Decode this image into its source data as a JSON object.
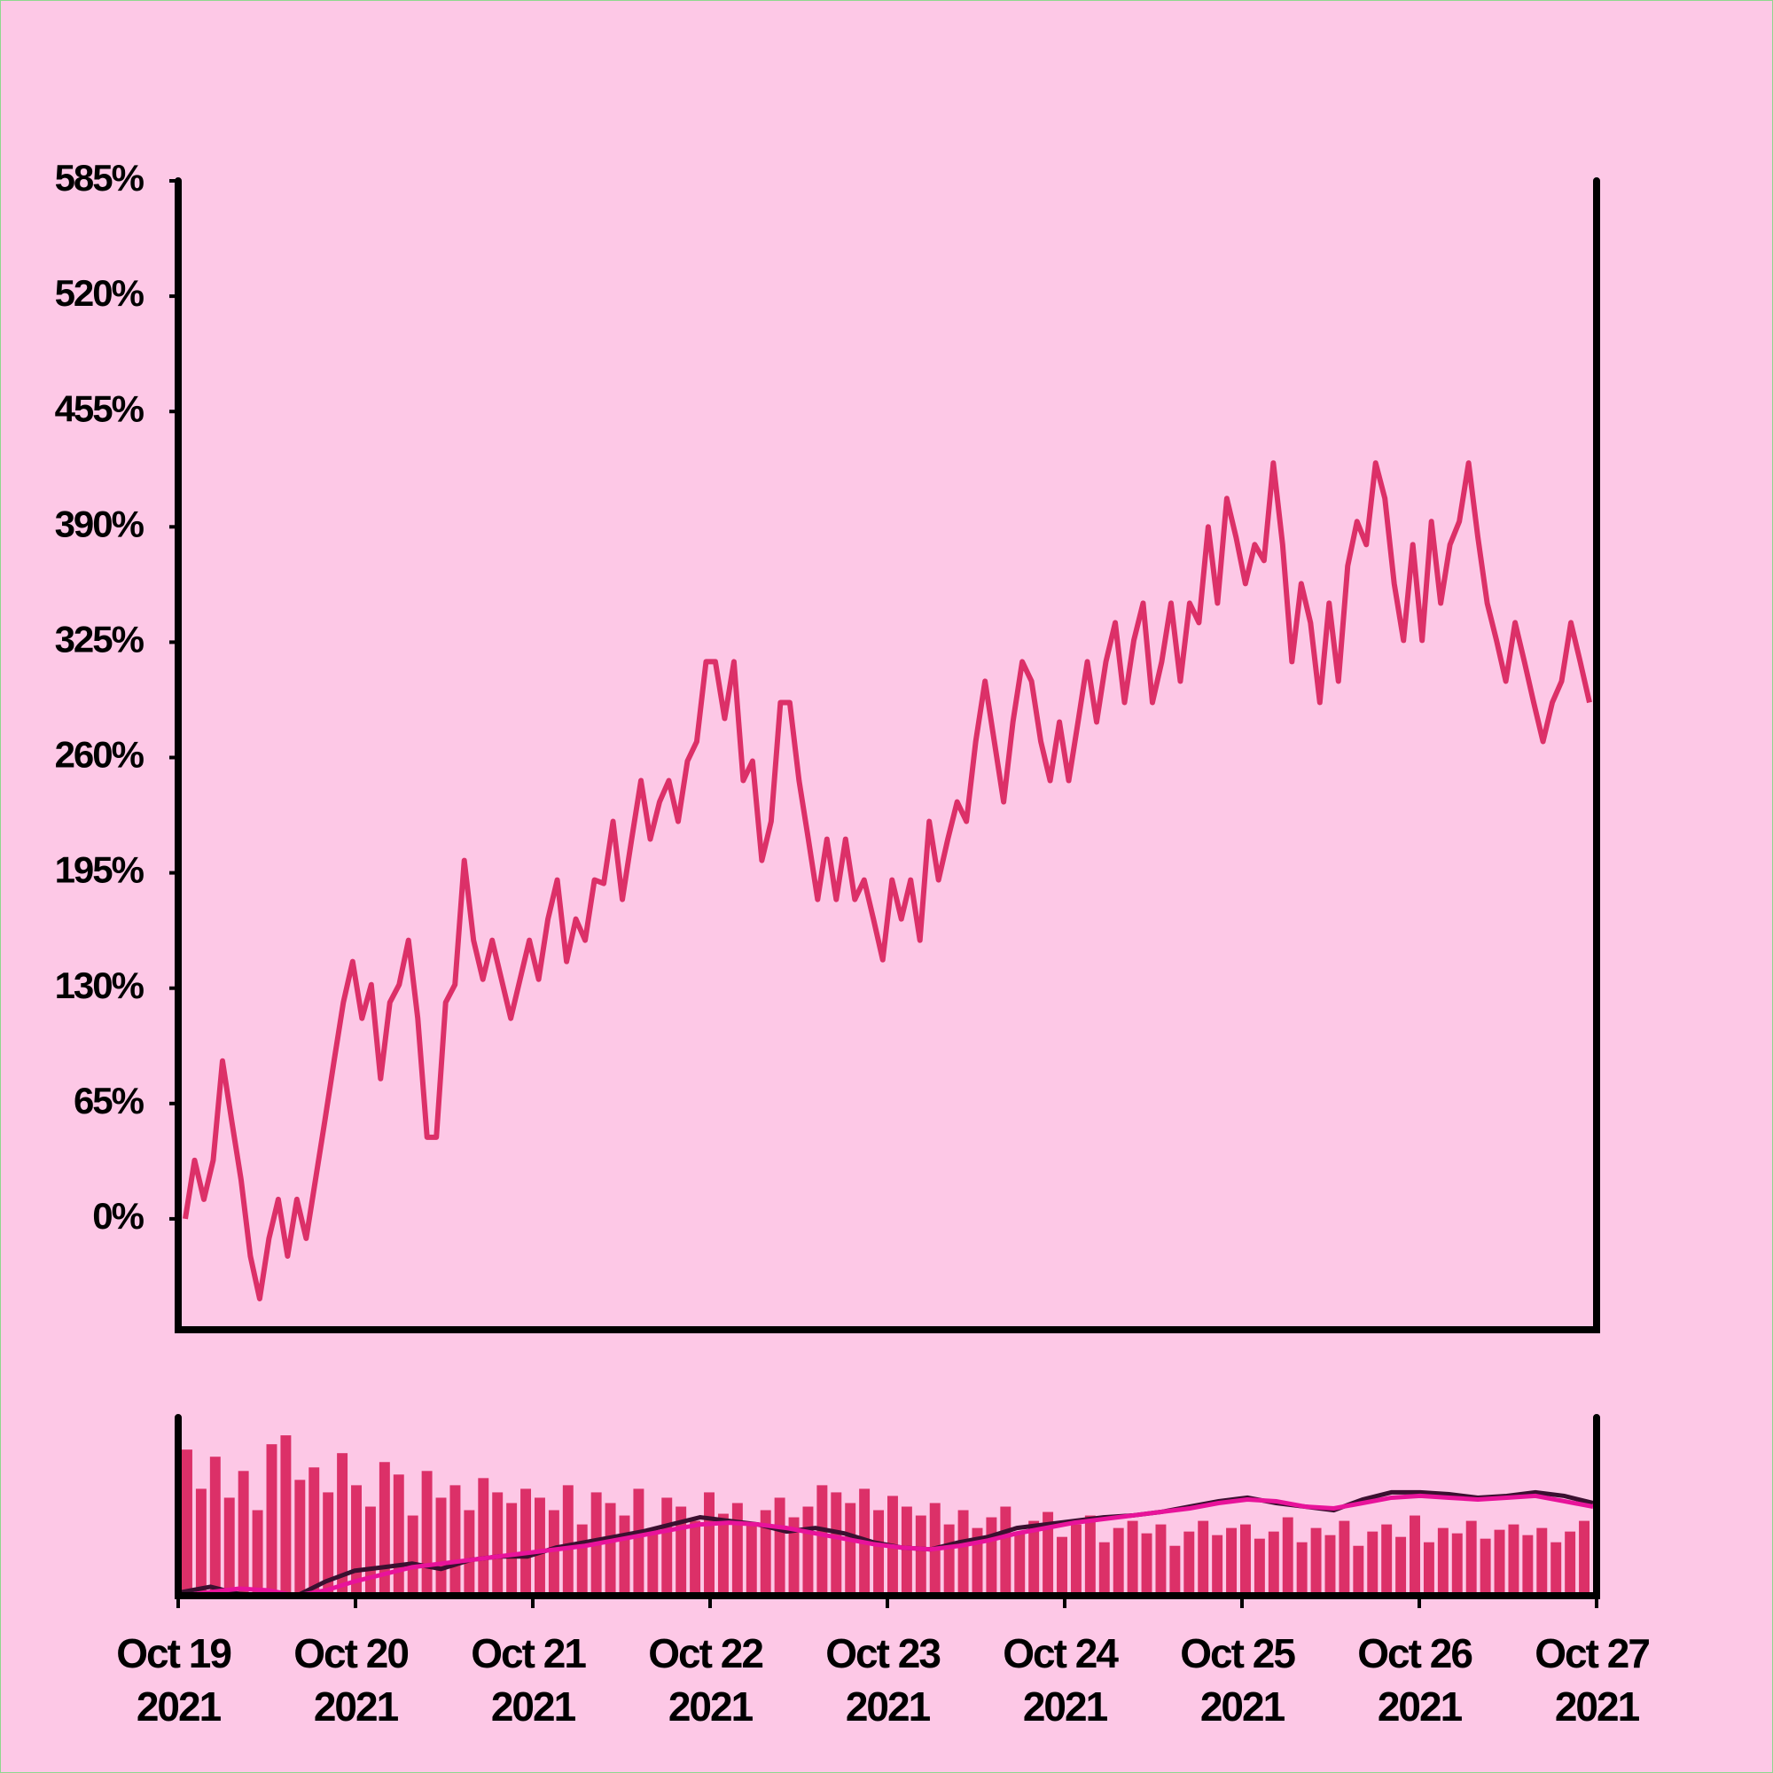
{
  "chart_data": [
    {
      "type": "line",
      "color": "#dc3068",
      "values": [
        0,
        33,
        11,
        33,
        89,
        55,
        22,
        -21,
        -45,
        -11,
        11,
        -21,
        11,
        -11,
        22,
        55,
        89,
        122,
        145,
        113,
        132,
        79,
        122,
        132,
        157,
        113,
        46,
        46,
        122,
        132,
        202,
        157,
        135,
        157,
        135,
        113,
        135,
        157,
        135,
        169,
        191,
        145,
        169,
        157,
        191,
        189,
        224,
        180,
        214,
        247,
        214,
        235,
        247,
        224,
        258,
        269,
        314,
        314,
        282,
        314,
        247,
        258,
        202,
        224,
        291,
        291,
        247,
        214,
        180,
        214,
        180,
        214,
        180,
        191,
        169,
        146,
        191,
        169,
        191,
        157,
        224,
        191,
        214,
        235,
        224,
        269,
        303,
        269,
        235,
        280,
        314,
        303,
        269,
        247,
        280,
        247,
        280,
        314,
        280,
        314,
        336,
        291,
        326,
        347,
        291,
        314,
        347,
        303,
        347,
        336,
        390,
        347,
        406,
        384,
        358,
        380,
        371,
        426,
        380,
        314,
        358,
        336,
        291,
        347,
        303,
        368,
        393,
        380,
        426,
        406,
        358,
        326,
        380,
        326,
        393,
        347,
        380,
        393,
        426,
        384,
        347,
        326,
        303,
        336,
        314,
        291,
        269,
        291,
        303,
        336,
        314,
        291
      ],
      "ylim": [
        -62.5,
        585
      ],
      "yticks": [
        {
          "value": 0,
          "label": "0%"
        },
        {
          "value": 65,
          "label": "65%"
        },
        {
          "value": 130,
          "label": "130%"
        },
        {
          "value": 195,
          "label": "195%"
        },
        {
          "value": 260,
          "label": "260%"
        },
        {
          "value": 325,
          "label": "325%"
        },
        {
          "value": 390,
          "label": "390%"
        },
        {
          "value": 455,
          "label": "455%"
        },
        {
          "value": 520,
          "label": "520%"
        },
        {
          "value": 585,
          "label": "585%"
        }
      ]
    },
    {
      "type": "bar",
      "color": "#dc3068",
      "ylim": [
        0,
        100
      ],
      "values": [
        82,
        60,
        78,
        55,
        70,
        48,
        85,
        90,
        65,
        72,
        58,
        80,
        62,
        50,
        75,
        68,
        45,
        70,
        55,
        62,
        48,
        66,
        58,
        52,
        60,
        55,
        48,
        62,
        40,
        58,
        52,
        45,
        60,
        38,
        55,
        50,
        42,
        58,
        46,
        52,
        40,
        48,
        55,
        44,
        50,
        62,
        58,
        52,
        60,
        48,
        56,
        50,
        45,
        52,
        40,
        48,
        38,
        44,
        50,
        36,
        42,
        47,
        33,
        40,
        45,
        30,
        38,
        42,
        35,
        40,
        28,
        36,
        42,
        34,
        38,
        40,
        32,
        36,
        44,
        30,
        38,
        34,
        42,
        28,
        36,
        40,
        33,
        45,
        30,
        38,
        35,
        42,
        32,
        37,
        40,
        34,
        38,
        30,
        36,
        42
      ],
      "series": [
        {
          "color": "#3a1030",
          "values": [
            2,
            5,
            1,
            0,
            0,
            8,
            14,
            16,
            18,
            15,
            20,
            22,
            22,
            27,
            30,
            33,
            36,
            40,
            44,
            42,
            40,
            36,
            38,
            35,
            30,
            27,
            26,
            30,
            33,
            38,
            40,
            42,
            44,
            45,
            47,
            50,
            53,
            55,
            52,
            50,
            48,
            54,
            58,
            58,
            57,
            55,
            56,
            58,
            56,
            52
          ]
        },
        {
          "color": "#e8139a",
          "values": [
            0,
            2,
            4,
            3,
            0,
            3,
            8,
            12,
            16,
            18,
            20,
            22,
            24,
            26,
            28,
            31,
            34,
            37,
            40,
            41,
            40,
            38,
            35,
            32,
            29,
            27,
            26,
            28,
            31,
            35,
            38,
            41,
            43,
            45,
            47,
            49,
            52,
            54,
            53,
            50,
            49,
            52,
            55,
            56,
            55,
            54,
            55,
            56,
            53,
            50
          ]
        }
      ],
      "xticks": [
        "Oct 19 2021",
        "Oct 20 2021",
        "Oct 21 2021",
        "Oct 22 2021",
        "Oct 23 2021",
        "Oct 24 2021",
        "Oct 25 2021",
        "Oct 26 2021",
        "Oct 27 2021"
      ]
    }
  ]
}
